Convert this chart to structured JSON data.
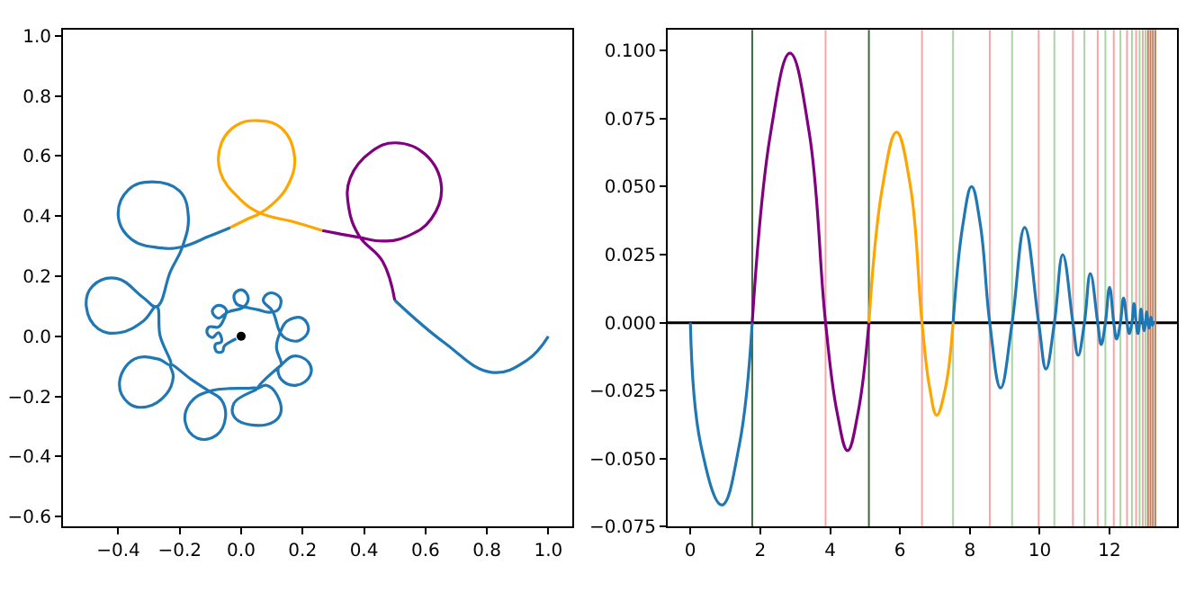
{
  "chart_data": [
    {
      "type": "line",
      "xlim": [
        -0.58,
        1.078
      ],
      "ylim": [
        -0.634,
        1.02
      ],
      "xticks": [
        {
          "value": -0.4,
          "label": "−0.4"
        },
        {
          "value": -0.2,
          "label": "−0.2"
        },
        {
          "value": 0,
          "label": "0.0"
        },
        {
          "value": 0.2,
          "label": "0.2"
        },
        {
          "value": 0.4,
          "label": "0.4"
        },
        {
          "value": 0.6,
          "label": "0.6"
        },
        {
          "value": 0.8,
          "label": "0.8"
        },
        {
          "value": 1,
          "label": "1.0"
        }
      ],
      "yticks": [
        {
          "value": -0.6,
          "label": "−0.6"
        },
        {
          "value": -0.4,
          "label": "−0.4"
        },
        {
          "value": -0.2,
          "label": "−0.2"
        },
        {
          "value": 0,
          "label": "0.0"
        },
        {
          "value": 0.2,
          "label": "0.2"
        },
        {
          "value": 0.4,
          "label": "0.4"
        },
        {
          "value": 0.6,
          "label": "0.6"
        },
        {
          "value": 0.8,
          "label": "0.8"
        },
        {
          "value": 1,
          "label": "1.0"
        }
      ],
      "grid": false,
      "series": [
        {
          "color": "#1f77b4",
          "x": [
            1.0,
            0.93,
            0.815,
            0.66,
            0.5,
            null,
            -0.035,
            -0.104,
            -0.191,
            -0.26,
            -0.357,
            -0.4,
            -0.367,
            -0.289,
            -0.201,
            -0.172,
            -0.191,
            -0.23,
            -0.275,
            -0.318,
            -0.406,
            -0.484,
            -0.504,
            -0.465,
            -0.396,
            -0.318,
            -0.275,
            -0.264,
            -0.23,
            -0.27,
            -0.348,
            -0.396,
            -0.367,
            -0.309,
            -0.244,
            -0.221,
            -0.23,
            -0.162,
            -0.104,
            -0.064,
            -0.051,
            -0.08,
            -0.143,
            -0.182,
            -0.166,
            -0.104,
            0.025,
            0.053,
            -0.023,
            -0.018,
            0.082,
            0.127,
            0.117,
            0.082,
            0.053,
            0.131,
            0.17,
            0.219,
            0.225,
            0.18,
            0.131,
            0.121,
            0.131,
            0.115,
            0.127,
            0.15,
            0.199,
            0.219,
            0.189,
            0.146,
            0.127,
            0.102,
            0.072,
            0.092,
            0.127,
            0.121,
            0.092,
            0.053,
            0.023,
            -0.016,
            -0.021,
            0.004,
            0.023,
            0.01,
            -0.045,
            -0.074,
            -0.094,
            -0.074,
            -0.049,
            -0.055,
            -0.074,
            -0.104,
            -0.111,
            -0.094,
            -0.074,
            -0.064,
            -0.084,
            -0.08,
            -0.061,
            -0.055,
            -0.035,
            -0.016
          ],
          "values": [
            0.0,
            -0.08,
            -0.12,
            -0.02,
            0.12,
            null,
            0.362,
            0.333,
            0.298,
            0.294,
            0.323,
            0.4,
            0.488,
            0.514,
            0.484,
            0.4,
            0.298,
            0.216,
            0.099,
            0.128,
            0.193,
            0.167,
            0.099,
            0.025,
            0.012,
            0.051,
            0.099,
            0.002,
            -0.095,
            -0.076,
            -0.076,
            -0.154,
            -0.222,
            -0.235,
            -0.193,
            -0.134,
            -0.095,
            -0.144,
            -0.183,
            -0.212,
            -0.27,
            -0.329,
            -0.339,
            -0.286,
            -0.222,
            -0.183,
            -0.173,
            -0.173,
            -0.222,
            -0.274,
            -0.294,
            -0.261,
            -0.196,
            -0.163,
            -0.173,
            -0.095,
            -0.066,
            -0.086,
            -0.13,
            -0.163,
            -0.144,
            -0.105,
            -0.095,
            -0.037,
            0.012,
            0.051,
            0.06,
            0.021,
            -0.014,
            -0.008,
            0.012,
            0.084,
            0.119,
            0.144,
            0.128,
            0.089,
            0.08,
            0.089,
            0.095,
            0.109,
            0.142,
            0.154,
            0.128,
            0.099,
            0.08,
            0.06,
            0.084,
            0.103,
            0.089,
            0.06,
            0.031,
            0.031,
            0.012,
            -0.004,
            0.012,
            -0.018,
            -0.027,
            -0.051,
            -0.051,
            -0.033,
            -0.018,
            -0.008
          ]
        },
        {
          "color": "#800080",
          "x": [
            0.5,
            0.46,
            0.385,
            0.35,
            0.355,
            0.424,
            0.502,
            0.6,
            0.652,
            0.619,
            0.541,
            0.463,
            0.385,
            0.316,
            0.264
          ],
          "values": [
            0.12,
            0.25,
            0.333,
            0.43,
            0.527,
            0.615,
            0.644,
            0.605,
            0.498,
            0.391,
            0.333,
            0.317,
            0.329,
            0.342,
            0.352
          ]
        },
        {
          "color": "#ffa500",
          "x": [
            0.264,
            0.17,
            0.0625,
            -0.006,
            -0.068,
            -0.064,
            -0.016,
            0.053,
            0.131,
            0.174,
            0.15,
            0.102,
            0.0625,
            0.014,
            -0.035
          ],
          "values": [
            0.352,
            0.381,
            0.41,
            0.459,
            0.547,
            0.644,
            0.702,
            0.718,
            0.693,
            0.595,
            0.498,
            0.44,
            0.41,
            0.387,
            0.362
          ]
        },
        {
          "type": "scatter",
          "color": "#000000",
          "x": [
            0
          ],
          "values": [
            0
          ]
        }
      ]
    },
    {
      "type": "line",
      "xlim": [
        -0.65,
        13.93
      ],
      "ylim": [
        -0.075,
        0.1076
      ],
      "xticks": [
        0,
        2,
        4,
        6,
        8,
        10,
        12
      ],
      "yticks": [
        {
          "value": -0.075,
          "label": "−0.075"
        },
        {
          "value": -0.05,
          "label": "−0.050"
        },
        {
          "value": -0.025,
          "label": "−0.025"
        },
        {
          "value": 0,
          "label": "0.000"
        },
        {
          "value": 0.025,
          "label": "0.025"
        },
        {
          "value": 0.05,
          "label": "0.050"
        },
        {
          "value": 0.075,
          "label": "0.075"
        },
        {
          "value": 0.1,
          "label": "0.100"
        }
      ],
      "grid": false,
      "series": [
        {
          "color": "#1f77b4",
          "x": [
            0,
            0.3,
            0.9,
            1.4,
            1.77,
            null,
            7.52,
            7.8,
            8.05,
            8.3,
            8.57,
            8.88,
            9.21,
            9.57,
            9.97,
            10.18,
            10.42,
            10.66,
            10.95,
            11.1,
            11.28,
            11.45,
            11.66,
            11.76,
            11.88,
            12.0,
            12.12,
            12.2,
            12.31,
            12.4,
            12.5,
            12.56,
            12.64,
            12.7,
            12.76,
            12.81,
            12.86,
            12.9,
            12.95,
            12.99,
            13.03,
            13.06,
            13.1,
            13.13,
            13.16,
            13.185,
            13.21,
            13.23,
            13.25,
            13.3
          ],
          "values": [
            0,
            -0.045,
            -0.067,
            -0.045,
            0,
            null,
            0,
            0.036,
            0.05,
            0.036,
            0,
            -0.024,
            0,
            0.035,
            0,
            -0.017,
            0,
            0.025,
            0,
            -0.012,
            0,
            0.018,
            0,
            -0.008,
            0,
            0.013,
            0,
            -0.006,
            0,
            0.009,
            0,
            -0.004,
            0,
            0.007,
            0,
            -0.004,
            0,
            0.005,
            0,
            -0.003,
            0,
            0.004,
            0,
            -0.002,
            0,
            0.002,
            0,
            -0.001,
            0,
            0
          ]
        },
        {
          "color": "#800080",
          "x": [
            1.77,
            2.3,
            2.85,
            3.4,
            3.87,
            4.2,
            4.5,
            4.8,
            5.11
          ],
          "values": [
            0,
            0.07,
            0.099,
            0.07,
            0,
            -0.033,
            -0.047,
            -0.033,
            0
          ]
        },
        {
          "color": "#ffa500",
          "x": [
            5.11,
            5.5,
            5.9,
            6.3,
            6.63,
            6.85,
            7.05,
            7.3,
            7.52
          ],
          "values": [
            0,
            0.05,
            0.07,
            0.05,
            0,
            -0.024,
            -0.034,
            -0.024,
            0
          ]
        }
      ],
      "ref_lines": [
        {
          "axis": "y",
          "value": 0,
          "color": "#000000"
        },
        {
          "axis": "x",
          "value": 1.77,
          "color": "#3d6b3d"
        },
        {
          "axis": "x",
          "value": 3.87,
          "color": "#f4a6a6"
        },
        {
          "axis": "x",
          "value": 5.11,
          "color": "#3d6b3d"
        },
        {
          "axis": "x",
          "value": 6.63,
          "color": "#f4a6a6"
        },
        {
          "axis": "x",
          "value": 7.52,
          "color": "#aad4a4"
        },
        {
          "axis": "x",
          "value": 8.57,
          "color": "#f4a6a6"
        },
        {
          "axis": "x",
          "value": 9.21,
          "color": "#aad4a4"
        },
        {
          "axis": "x",
          "value": 9.97,
          "color": "#f4a6a6"
        },
        {
          "axis": "x",
          "value": 10.42,
          "color": "#aad4a4"
        },
        {
          "axis": "x",
          "value": 10.95,
          "color": "#f4a6a6"
        },
        {
          "axis": "x",
          "value": 11.28,
          "color": "#aad4a4"
        },
        {
          "axis": "x",
          "value": 11.66,
          "color": "#f4a6a6"
        },
        {
          "axis": "x",
          "value": 11.88,
          "color": "#aad4a4"
        },
        {
          "axis": "x",
          "value": 12.12,
          "color": "#f4a6a6"
        },
        {
          "axis": "x",
          "value": 12.31,
          "color": "#aad4a4"
        },
        {
          "axis": "x",
          "value": 12.5,
          "color": "#f4a6a6"
        },
        {
          "axis": "x",
          "value": 12.64,
          "color": "#aad4a4"
        },
        {
          "axis": "x",
          "value": 12.76,
          "color": "#f4a6a6"
        },
        {
          "axis": "x",
          "value": 12.86,
          "color": "#aad4a4"
        },
        {
          "axis": "x",
          "value": 12.95,
          "color": "#f4a6a6"
        },
        {
          "axis": "x",
          "value": 13.03,
          "color": "#aad4a4"
        },
        {
          "axis": "x",
          "value": 13.1,
          "color": "#c08060"
        },
        {
          "axis": "x",
          "value": 13.17,
          "color": "#c08060"
        },
        {
          "axis": "x",
          "value": 13.24,
          "color": "#c08060"
        },
        {
          "axis": "x",
          "value": 13.31,
          "color": "#c08060"
        }
      ]
    }
  ]
}
